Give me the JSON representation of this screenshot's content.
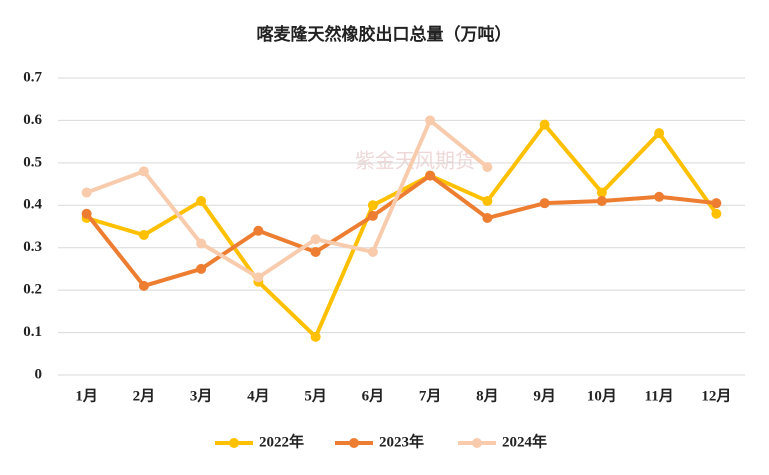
{
  "chart_data": {
    "type": "line",
    "title": "喀麦隆天然橡胶出口总量（万吨）",
    "watermark": "紫金天风期货",
    "categories": [
      "1月",
      "2月",
      "3月",
      "4月",
      "5月",
      "6月",
      "7月",
      "8月",
      "9月",
      "10月",
      "11月",
      "12月"
    ],
    "series": [
      {
        "name": "2022年",
        "color": "#FFC000",
        "values": [
          0.37,
          0.33,
          0.41,
          0.22,
          0.09,
          0.4,
          0.47,
          0.41,
          0.59,
          0.43,
          0.57,
          0.38
        ]
      },
      {
        "name": "2023年",
        "color": "#ED7D31",
        "values": [
          0.38,
          0.21,
          0.25,
          0.34,
          0.29,
          0.375,
          0.47,
          0.37,
          0.405,
          0.41,
          0.42,
          0.405
        ]
      },
      {
        "name": "2024年",
        "color": "#F8CBAD",
        "values": [
          0.43,
          0.48,
          0.31,
          0.23,
          0.32,
          0.29,
          0.6,
          0.49,
          null,
          null,
          null,
          null
        ]
      }
    ],
    "ylim": [
      0,
      0.7
    ],
    "yticks": [
      0,
      0.1,
      0.2,
      0.3,
      0.4,
      0.5,
      0.6,
      0.7
    ],
    "grid": true,
    "legend": "bottom"
  }
}
